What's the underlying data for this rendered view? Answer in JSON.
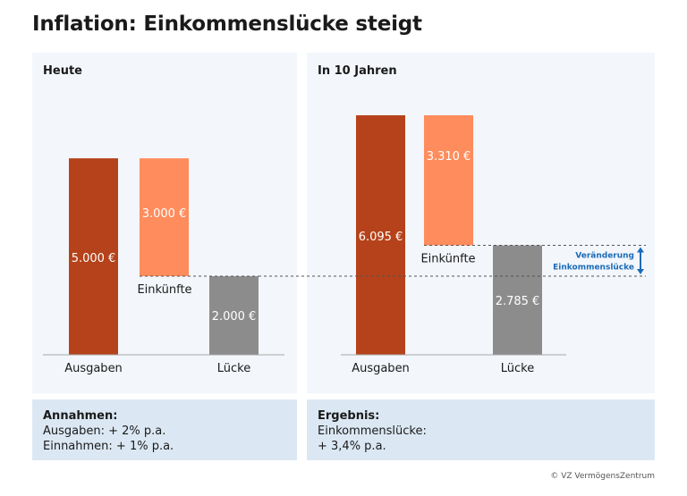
{
  "title": "Inflation: Einkommenslücke steigt",
  "panels": {
    "left": {
      "heading": "Heute"
    },
    "right": {
      "heading": "In 10 Jahren"
    }
  },
  "boxes": {
    "left": {
      "heading": "Annahmen:",
      "line1": "Ausgaben: + 2% p.a.",
      "line2": "Einnahmen: + 1% p.a."
    },
    "right": {
      "heading": "Ergebnis:",
      "line1": "Einkommenslücke:",
      "line2": "+ 3,4% p.a."
    }
  },
  "copyright": "© VZ VermögensZentrum",
  "colors": {
    "ausgaben": "#b5421a",
    "einkuenfte": "#ff8c5c",
    "luecke": "#8c8c8c",
    "accent": "#1a6bb8"
  },
  "chart_data": [
    {
      "type": "bar",
      "title": "Heute",
      "categories": [
        "Ausgaben",
        "Lücke"
      ],
      "series": [
        {
          "name": "Ausgaben",
          "value": 5000,
          "label": "5.000 €"
        },
        {
          "name": "Einkünfte",
          "value": 3000,
          "label": "3.000 €"
        },
        {
          "name": "Lücke",
          "value": 2000,
          "label": "2.000 €"
        }
      ],
      "annotation": "Einkünfte",
      "ylim": [
        0,
        6095
      ]
    },
    {
      "type": "bar",
      "title": "In 10 Jahren",
      "categories": [
        "Ausgaben",
        "Lücke"
      ],
      "series": [
        {
          "name": "Ausgaben",
          "value": 6095,
          "label": "6.095 €"
        },
        {
          "name": "Einkünfte",
          "value": 3310,
          "label": "3.310 €"
        },
        {
          "name": "Lücke",
          "value": 2785,
          "label": "2.785 €"
        }
      ],
      "annotation": "Einkünfte",
      "change_label_line1": "Veränderung",
      "change_label_line2": "Einkommenslücke",
      "ylim": [
        0,
        6095
      ]
    }
  ]
}
